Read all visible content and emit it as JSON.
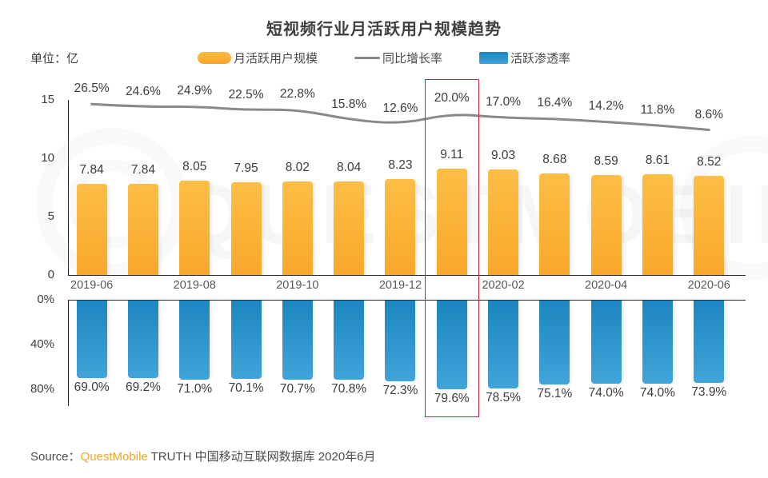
{
  "title": "短视频行业月活跃用户规模趋势",
  "unit_label": "单位：亿",
  "legend": [
    {
      "label": "月活跃用户规模",
      "swatch": "orange-bar-swatch",
      "color": "#F9AE33"
    },
    {
      "label": "同比增长率",
      "swatch": "gray-line-swatch",
      "color": "#8A8A8A"
    },
    {
      "label": "活跃渗透率",
      "swatch": "blue-bar-swatch",
      "color": "#2B90C8"
    }
  ],
  "chart_data": {
    "type": "combo",
    "months_count": 13,
    "x_tick_labels": [
      "2019-06",
      "2019-08",
      "2019-10",
      "2019-12",
      "2020-02",
      "2020-04",
      "2020-06"
    ],
    "x_tick_positions": [
      0,
      2,
      4,
      6,
      8,
      10,
      12
    ],
    "series": [
      {
        "name": "月活跃用户规模",
        "type": "bar",
        "unit": "亿",
        "color": "#F9AE33",
        "values": [
          7.84,
          7.84,
          8.05,
          7.95,
          8.02,
          8.04,
          8.23,
          9.11,
          9.03,
          8.68,
          8.59,
          8.61,
          8.52
        ]
      },
      {
        "name": "同比增长率",
        "type": "line",
        "unit": "%",
        "color": "#8A8A8A",
        "values": [
          26.5,
          24.6,
          24.9,
          22.5,
          22.8,
          15.8,
          12.6,
          20.0,
          17.0,
          16.4,
          14.2,
          11.8,
          8.6
        ]
      },
      {
        "name": "活跃渗透率",
        "type": "bar",
        "unit": "%",
        "color": "#2B90C8",
        "inverted": true,
        "values": [
          69.0,
          69.2,
          71.0,
          70.1,
          70.7,
          70.8,
          72.3,
          79.6,
          78.5,
          75.1,
          74.0,
          74.0,
          73.9
        ]
      }
    ],
    "top_axis": {
      "ticks": [
        "15",
        "10",
        "5",
        "0"
      ],
      "range": [
        0,
        15
      ]
    },
    "bottom_axis": {
      "ticks": [
        "0%",
        "40%",
        "80%"
      ],
      "range": [
        0,
        80
      ],
      "inverted": true
    },
    "highlight_index": 7,
    "highlight_color": "#C62641"
  },
  "watermark": "QUESTMOBILE",
  "source": {
    "prefix": "Source：",
    "brand": "QuestMobile",
    "rest": " TRUTH 中国移动互联网数据库 2020年6月"
  }
}
